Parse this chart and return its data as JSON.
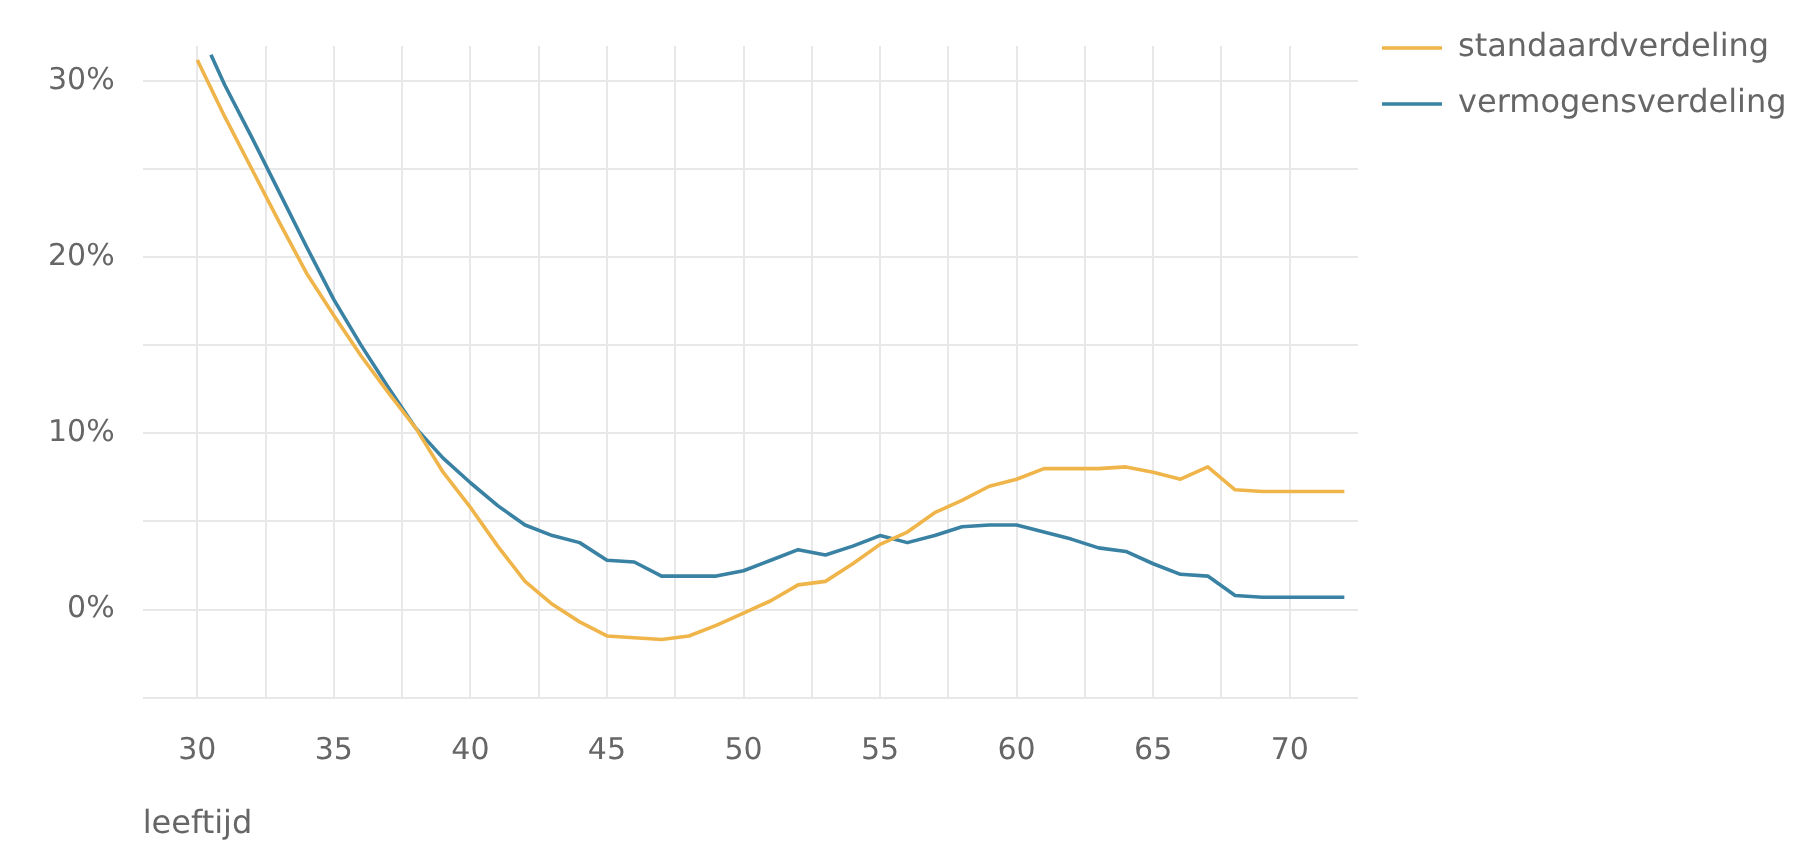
{
  "chart_data": {
    "type": "line",
    "xlabel": "leeftijd",
    "xlim": [
      28,
      72.5
    ],
    "xticks": [
      30,
      {
        "value": 32.5,
        "label": null
      },
      35,
      {
        "value": 37.5,
        "label": null
      },
      40,
      {
        "value": 42.5,
        "label": null
      },
      45,
      {
        "value": 47.5,
        "label": null
      },
      50,
      {
        "value": 52.5,
        "label": null
      },
      55,
      {
        "value": 57.5,
        "label": null
      },
      60,
      {
        "value": 62.5,
        "label": null
      },
      65,
      {
        "value": 67.5,
        "label": null
      },
      70
    ],
    "ylim": [
      -5,
      32
    ],
    "yticks": [
      {
        "value": -5,
        "label": null
      },
      {
        "value": 0,
        "label": "0%"
      },
      {
        "value": 5,
        "label": null
      },
      {
        "value": 10,
        "label": "10%"
      },
      {
        "value": 15,
        "label": null
      },
      {
        "value": 20,
        "label": "20%"
      },
      {
        "value": 25,
        "label": null
      },
      {
        "value": 30,
        "label": "30%"
      }
    ],
    "grid": true,
    "legend": "top right",
    "marker": "none",
    "line_style": "solid",
    "series": [
      {
        "name": "standaardverdeling",
        "color": "#f0b54a",
        "x": [
          30,
          31,
          32,
          33,
          34,
          35,
          36,
          37,
          38,
          39,
          40,
          41,
          42,
          43,
          44,
          45,
          46,
          47,
          48,
          49,
          50,
          51,
          52,
          53,
          54,
          55,
          56,
          57,
          58,
          59,
          60,
          61,
          62,
          63,
          64,
          65,
          66,
          67,
          68,
          69,
          70,
          71,
          72
        ],
        "values": [
          31.2,
          28.0,
          25.0,
          22.0,
          19.1,
          16.7,
          14.4,
          12.3,
          10.3,
          7.8,
          5.8,
          3.6,
          1.6,
          0.3,
          -0.7,
          -1.5,
          -1.6,
          -1.7,
          -1.5,
          -0.9,
          -0.2,
          0.5,
          1.4,
          1.6,
          2.6,
          3.7,
          4.4,
          5.5,
          6.2,
          7.0,
          7.4,
          8.0,
          8.0,
          8.0,
          8.1,
          7.8,
          7.4,
          8.1,
          6.8,
          6.7,
          6.7,
          6.7,
          6.7
        ]
      },
      {
        "name": "vermogensverdeling",
        "color": "#3a82a3",
        "x": [
          30.5,
          31,
          32,
          33,
          34,
          35,
          36,
          37,
          38,
          39,
          40,
          41,
          42,
          43,
          44,
          45,
          46,
          47,
          48,
          49,
          50,
          51,
          52,
          53,
          54,
          55,
          56,
          57,
          58,
          59,
          60,
          61,
          62,
          63,
          64,
          65,
          66,
          67,
          68,
          69,
          70,
          71,
          72
        ],
        "values": [
          31.5,
          29.8,
          26.8,
          23.7,
          20.6,
          17.6,
          15.0,
          12.6,
          10.3,
          8.6,
          7.2,
          5.9,
          4.8,
          4.2,
          3.8,
          2.8,
          2.7,
          1.9,
          1.9,
          1.9,
          2.2,
          2.8,
          3.4,
          3.1,
          3.6,
          4.2,
          3.8,
          4.2,
          4.7,
          4.8,
          4.8,
          4.4,
          4.0,
          3.5,
          3.3,
          2.6,
          2.0,
          1.9,
          0.8,
          0.7,
          0.7,
          0.7,
          0.7
        ]
      }
    ]
  }
}
